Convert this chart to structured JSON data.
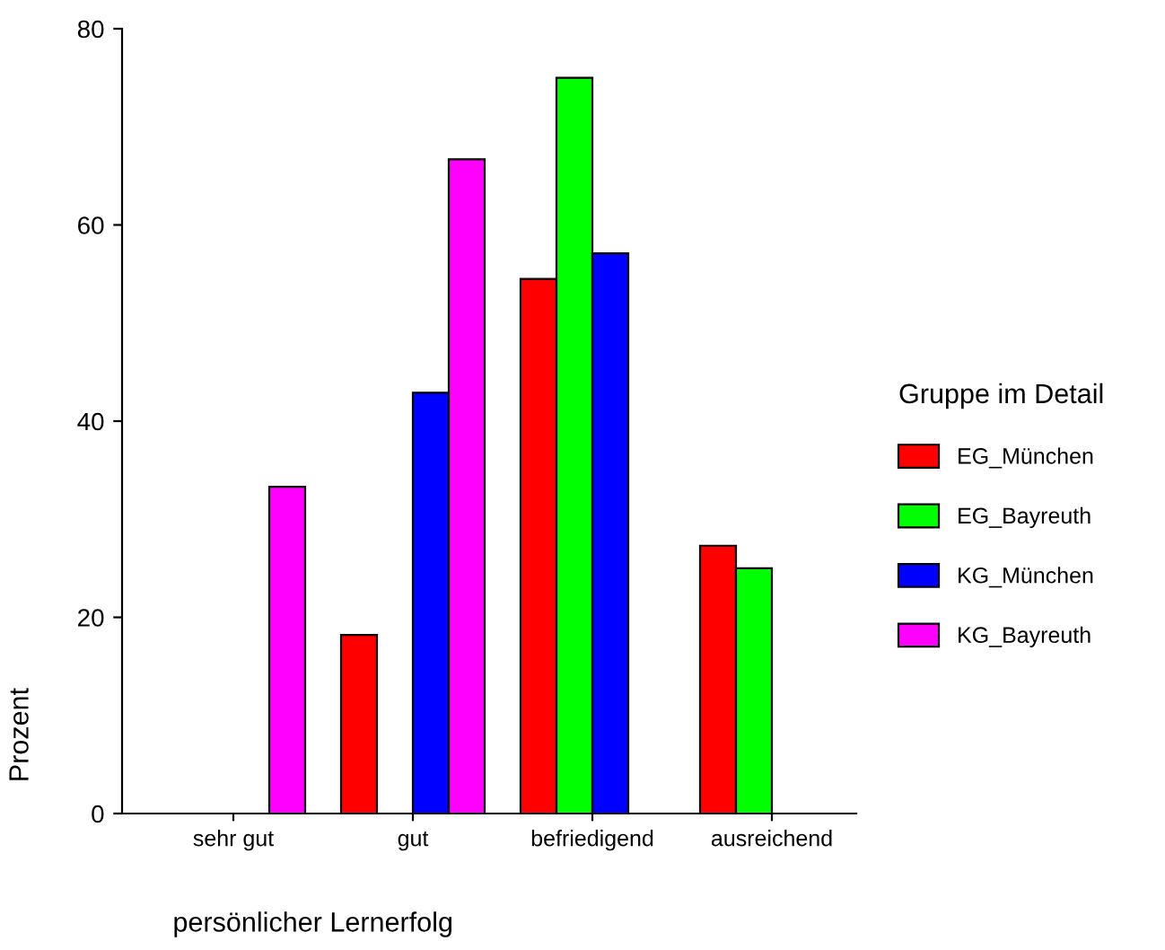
{
  "chart_data": {
    "type": "bar",
    "xlabel": "persönlicher Lernerfolg",
    "ylabel": "Prozent",
    "legend_title": "Gruppe im Detail",
    "categories": [
      "sehr gut",
      "gut",
      "befriedigend",
      "ausreichend"
    ],
    "series": [
      {
        "name": "EG_München",
        "color": "#ff0000",
        "values": [
          null,
          18.2,
          54.5,
          27.3
        ]
      },
      {
        "name": "EG_Bayreuth",
        "color": "#00ff00",
        "values": [
          null,
          null,
          75.0,
          25.0
        ]
      },
      {
        "name": "KG_München",
        "color": "#0000ff",
        "values": [
          null,
          42.9,
          57.1,
          null
        ]
      },
      {
        "name": "KG_Bayreuth",
        "color": "#ff00ff",
        "values": [
          33.3,
          66.7,
          null,
          null
        ]
      }
    ],
    "ylim": [
      0,
      80
    ],
    "yticks": [
      0,
      20,
      40,
      60,
      80
    ],
    "grid": false,
    "legend": "right"
  }
}
